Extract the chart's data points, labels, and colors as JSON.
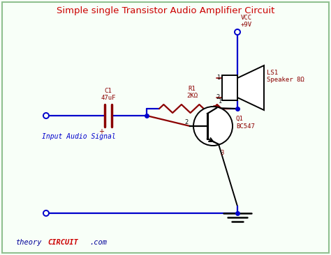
{
  "title": "Simple single Transistor Audio Amplifier Circuit",
  "title_color": "#cc0000",
  "title_fontsize": 9.5,
  "bg_color": "#f8fff8",
  "border_color": "#90c090",
  "wire_color": "#0000cc",
  "component_color": "#8b0000",
  "text_color_blue": "#0000cc",
  "text_color_red": "#8b0000",
  "text_color_dark": "#111111",
  "footer_theory_color": "#000099",
  "footer_circuit_color": "#cc0000",
  "vcc_label1": "VCC",
  "vcc_label2": "+9V",
  "r1_label": "R1\n2KΩ",
  "c1_label": "C1\n47uF",
  "q1_label": "Q1\nBC547",
  "ls1_label": "LS1\nSpeaker 8Ω",
  "input_label": "Input Audio Signal",
  "pin1": "1",
  "pin2": "2",
  "pin3": "3"
}
